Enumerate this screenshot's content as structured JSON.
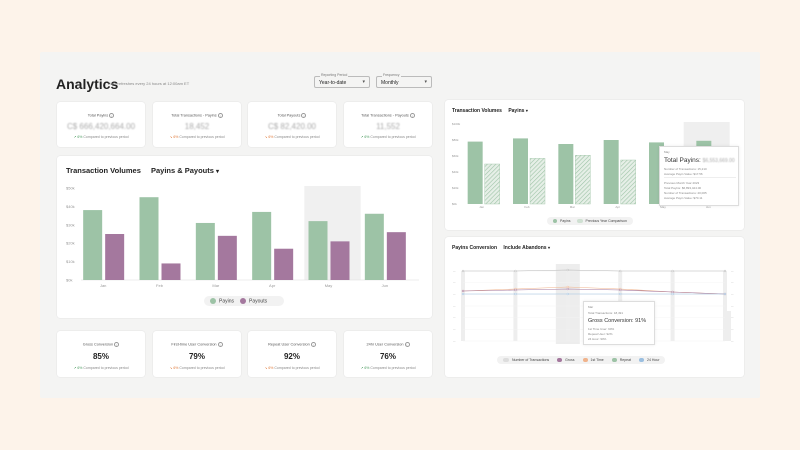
{
  "header": {
    "title": "Analytics",
    "subtitle": "Data refreshes every 24 hours at 12:00am ET",
    "reporting_period_label": "Reporting Period",
    "reporting_period_value": "Year-to-date",
    "frequency_label": "Frequency",
    "frequency_value": "Monthly"
  },
  "kpis_top": [
    {
      "title": "Total Payins",
      "value": "C$ 666,420,664.00",
      "delta": "6%",
      "compare": "Compared to previous period",
      "trend": "up"
    },
    {
      "title": "Total Transactions - Payins",
      "value": "18,452",
      "delta": "6%",
      "compare": "Compared to previous period",
      "trend": "down"
    },
    {
      "title": "Total Payouts",
      "value": "C$ 82,420.00",
      "delta": "6%",
      "compare": "Compared to previous period",
      "trend": "down"
    },
    {
      "title": "Total Transactions - Payouts",
      "value": "11,552",
      "delta": "6%",
      "compare": "Compared to previous period",
      "trend": "up"
    }
  ],
  "kpis_bottom": [
    {
      "title": "Gross Conversion",
      "value": "85%",
      "delta": "6%",
      "compare": "Compared to previous period",
      "trend": "up"
    },
    {
      "title": "First-time User Conversion",
      "value": "79%",
      "delta": "6%",
      "compare": "Compared to previous period",
      "trend": "down"
    },
    {
      "title": "Repeat User Conversion",
      "value": "92%",
      "delta": "6%",
      "compare": "Compared to previous period",
      "trend": "down"
    },
    {
      "title": "24hr User Conversion",
      "value": "76%",
      "delta": "6%",
      "compare": "Compared to previous period",
      "trend": "up"
    }
  ],
  "main_chart": {
    "title": "Transaction Volumes",
    "filter": "Payins & Payouts",
    "legend": [
      "Payins",
      "Payouts"
    ],
    "colors": {
      "payins": "#9dc3a6",
      "payouts": "#a4789e"
    },
    "chart_data": {
      "type": "bar",
      "categories": [
        "Jan",
        "Feb",
        "Mar",
        "Apr",
        "May",
        "Jun"
      ],
      "series": [
        {
          "name": "Payins",
          "values": [
            38,
            45,
            31,
            37,
            32,
            36
          ]
        },
        {
          "name": "Payouts",
          "values": [
            25,
            9,
            24,
            17,
            21,
            26
          ]
        }
      ],
      "yticks": [
        "$50k",
        "$40k",
        "$30k",
        "$20k",
        "$10k",
        "$0k"
      ],
      "ylim": [
        0,
        50
      ]
    }
  },
  "right_top_chart": {
    "title": "Transaction Volumes",
    "filter": "Payins",
    "legend": [
      "Payins",
      "Previous Year Comparison"
    ],
    "yticks": [
      "$100k",
      "$80k",
      "$60k",
      "$40k",
      "$20k",
      "$0k"
    ],
    "categories": [
      "Jan",
      "Feb",
      "Mar",
      "Apr",
      "May",
      "Jun"
    ],
    "chart_data": {
      "type": "bar",
      "categories": [
        "Jan",
        "Feb",
        "Mar",
        "Apr",
        "May",
        "Jun"
      ],
      "series": [
        {
          "name": "Payins",
          "values": [
            78,
            82,
            75,
            80,
            77,
            0
          ]
        },
        {
          "name": "Previous Year Comparison",
          "values": [
            50,
            57,
            61,
            55,
            70,
            0
          ]
        }
      ],
      "ylim": [
        0,
        100
      ]
    },
    "tooltip": {
      "month": "May",
      "headline": "Total Payins:",
      "amount": "$6,553,669.00",
      "line1": "Number of Transactions: 15,210",
      "line2": "Average Payin Value: $17.56",
      "section": "Previous Month Year 2023",
      "line3": "Total Payins: $6,893,424.00",
      "line4": "Number of Transactions: 20,005",
      "line5": "Average Payin Value: $70.11"
    }
  },
  "right_bottom_chart": {
    "title": "Payins Conversion",
    "filter": "Include Abandons",
    "legend": [
      "Number of Transactions",
      "Gross",
      "1st Time",
      "Repeat",
      "24 Hour"
    ],
    "legend_colors": [
      "#dddddd",
      "#a4789e",
      "#f0b38c",
      "#9dc3a6",
      "#9bbfe0"
    ],
    "tooltip": {
      "month": "Mar",
      "line1": "Total Transactions: 18,491",
      "headline": "Gross Conversion: 91%",
      "line2": "1st Time User: 90%",
      "line3": "Repeat User: 92%",
      "line4": "24 Hour: 90%"
    }
  }
}
